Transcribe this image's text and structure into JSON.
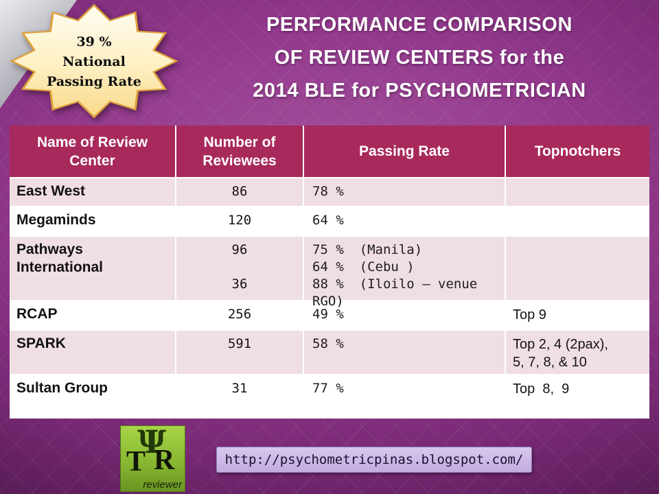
{
  "slide": {
    "badge": {
      "line1": "39 %",
      "line2": "National",
      "line3": "Passing Rate"
    },
    "title": {
      "line1": "PERFORMANCE COMPARISON",
      "line2": "OF REVIEW CENTERS for the",
      "line3": "2014 BLE for PSYCHOMETRICIAN"
    },
    "footer": {
      "url": "http://psychometricpinas.blogspot.com/",
      "logo": {
        "psi": "Ψ",
        "letter_t": "T",
        "letter_r": "R",
        "caption": "reviewer"
      }
    },
    "colors": {
      "header_bg": "#A8295B",
      "row_pink": "#F0DEE5",
      "row_white": "#FFFFFF",
      "background_purple": "#93398D",
      "badge_fill": "#FDEFC2",
      "badge_border": "#DFA13C",
      "url_box_bg": "#C9B6E4",
      "logo_green": "#8CBE35"
    }
  },
  "table": {
    "headers": [
      "Name of Review\nCenter",
      "Number of\nReviewees",
      "Passing Rate",
      "Topnotchers"
    ],
    "rows": [
      {
        "name": "East West",
        "reviewees": [
          "86"
        ],
        "passing": [
          "78 %"
        ],
        "topnotchers": ""
      },
      {
        "name": "Megaminds",
        "reviewees": [
          "120"
        ],
        "passing": [
          "64 %"
        ],
        "topnotchers": ""
      },
      {
        "name": "Pathways\nInternational",
        "reviewees": [
          "96",
          "36"
        ],
        "passing": [
          "75 %  (Manila)",
          "64 %  (Cebu )",
          "88 %  (Iloilo – venue RGO)"
        ],
        "topnotchers": ""
      },
      {
        "name": "RCAP",
        "reviewees": [
          "256"
        ],
        "passing": [
          "49 %"
        ],
        "topnotchers": "Top 9"
      },
      {
        "name": "SPARK",
        "reviewees": [
          "591"
        ],
        "passing": [
          "58 %"
        ],
        "topnotchers": "Top 2, 4 (2pax),\n5, 7, 8, & 10"
      },
      {
        "name": "Sultan Group",
        "reviewees": [
          "31"
        ],
        "passing": [
          "77 %"
        ],
        "topnotchers": "Top  8,  9"
      }
    ]
  }
}
